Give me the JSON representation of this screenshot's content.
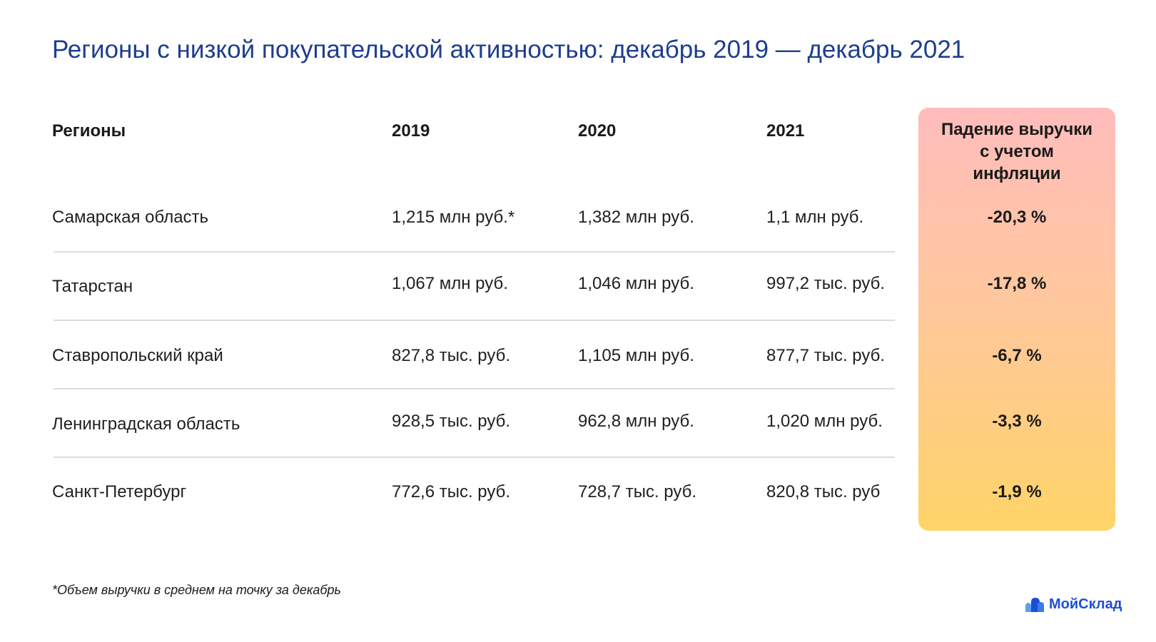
{
  "title": "Регионы с низкой покупательской активностью: декабрь 2019 — декабрь 2021",
  "headers": {
    "region": "Регионы",
    "y2019": "2019",
    "y2020": "2020",
    "y2021": "2021",
    "drop_line1": "Падение выручки",
    "drop_line2": "с учетом",
    "drop_line3": "инфляции"
  },
  "rows": [
    {
      "region": "Самарская область",
      "y2019": "1,215 млн руб.*",
      "y2020": "1,382 млн руб.",
      "y2021": "1,1 млн руб.",
      "drop": "-20,3 %"
    },
    {
      "region": "Татарстан",
      "y2019": "1,067 млн руб.",
      "y2020": "1,046 млн руб.",
      "y2021": "997,2 тыс. руб.",
      "drop": "-17,8 %"
    },
    {
      "region": "Ставропольский край",
      "y2019": "827,8 тыс. руб.",
      "y2020": "1,105 млн руб.",
      "y2021": "877,7 тыс. руб.",
      "drop": "-6,7 %"
    },
    {
      "region": "Ленинградская область",
      "y2019": "928,5 тыс. руб.",
      "y2020": "962,8 млн руб.",
      "y2021": "1,020 млн руб.",
      "drop": "-3,3 %"
    },
    {
      "region": "Санкт-Петербург",
      "y2019": "772,6 тыс. руб.",
      "y2020": "728,7 тыс. руб.",
      "y2021": "820,8 тыс. руб",
      "drop": "-1,9 %"
    }
  ],
  "footnote": "*Объем выручки в среднем на точку за декабрь",
  "logo": {
    "text": "МойСклад",
    "icon": "mountains-logo-icon",
    "colors": {
      "primary": "#1d4fd6",
      "secondary": "#5aa0f0"
    }
  },
  "colors": {
    "title": "#1d3d8f",
    "highlight_top": "#ffbcbc",
    "highlight_bottom": "#ffd468"
  }
}
